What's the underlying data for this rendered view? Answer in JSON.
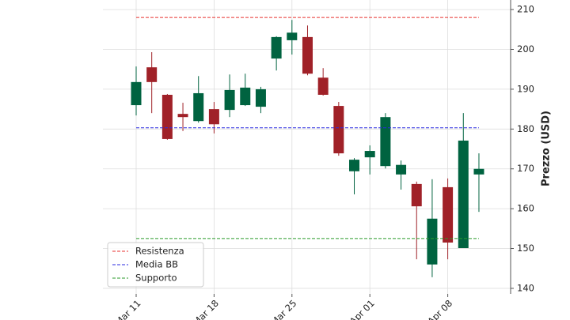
{
  "chart_data": {
    "type": "candlestick",
    "ylabel": "Prezzo (USD)",
    "categories": [
      "Mar 11",
      null,
      null,
      null,
      null,
      "Mar 18",
      null,
      null,
      null,
      null,
      "Mar 25",
      null,
      null,
      null,
      null,
      "Apr 01",
      null,
      null,
      null,
      null,
      "Apr 08",
      null,
      null
    ],
    "open": [
      186.0,
      195.5,
      188.6,
      183.8,
      182.0,
      185.0,
      184.8,
      186.0,
      185.6,
      197.7,
      202.3,
      203.1,
      192.9,
      185.8,
      169.4,
      172.9,
      170.7,
      168.6,
      166.2,
      146.0,
      165.4,
      150.1,
      168.6
    ],
    "high": [
      195.7,
      199.3,
      188.8,
      186.6,
      193.3,
      186.8,
      193.7,
      193.9,
      190.6,
      203.3,
      207.4,
      206.0,
      195.3,
      186.8,
      172.7,
      175.9,
      184.0,
      172.1,
      166.8,
      167.4,
      167.6,
      184.0,
      173.9
    ],
    "low": [
      183.4,
      184.0,
      177.3,
      179.5,
      181.6,
      178.9,
      183.0,
      185.8,
      184.0,
      194.7,
      198.7,
      193.5,
      188.4,
      173.3,
      163.6,
      168.6,
      170.1,
      164.8,
      147.3,
      142.8,
      147.3,
      150.1,
      159.2
    ],
    "close": [
      191.8,
      191.8,
      177.5,
      183.0,
      189.0,
      181.2,
      189.8,
      190.4,
      190.0,
      203.1,
      204.2,
      193.9,
      188.6,
      173.9,
      172.3,
      174.5,
      183.0,
      171.0,
      160.6,
      157.5,
      151.5,
      177.1,
      170.0
    ],
    "up_color": "#006340",
    "down_color": "#a02128",
    "hlines": [
      {
        "name": "Resistenza",
        "value": 208.0,
        "color": "#e8312f"
      },
      {
        "name": "Media BB",
        "value": 180.3,
        "color": "#2a2ae0"
      },
      {
        "name": "Supporto",
        "value": 152.5,
        "color": "#2a9a2a"
      }
    ],
    "ylim": [
      138.6,
      212.4
    ],
    "yticks": [
      140,
      150,
      160,
      170,
      180,
      190,
      200,
      210
    ],
    "grid": true,
    "legend": "lower left"
  }
}
